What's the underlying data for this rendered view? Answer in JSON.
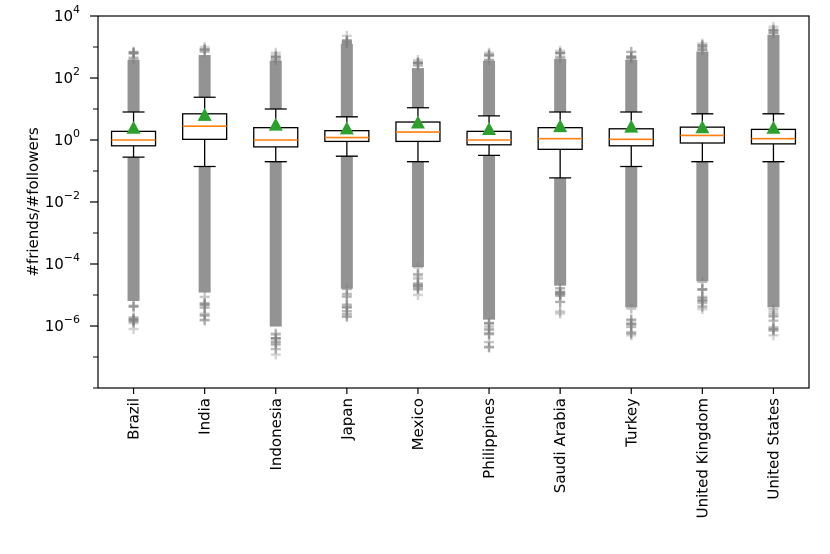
{
  "chart_data": {
    "type": "box",
    "ylabel": "#friends/#followers",
    "xlabel": "",
    "yscale": "log",
    "ylim": [
      1e-08,
      10000.0
    ],
    "yticks": [
      {
        "value": 1e-06,
        "base": "10",
        "exp": "−6"
      },
      {
        "value": 0.0001,
        "base": "10",
        "exp": "−4"
      },
      {
        "value": 0.01,
        "base": "10",
        "exp": "−2"
      },
      {
        "value": 1,
        "base": "10",
        "exp": "0"
      },
      {
        "value": 100,
        "base": "10",
        "exp": "2"
      },
      {
        "value": 10000.0,
        "base": "10",
        "exp": "4"
      }
    ],
    "grid": false,
    "colors": {
      "box": "#000000",
      "median": "#ff7f0e",
      "mean": "#2ca02c",
      "outlier": "#808080"
    },
    "mean_marker": "triangle-up",
    "outlier_marker": "plus",
    "categories": [
      "Brazil",
      "India",
      "Indonesia",
      "Japan",
      "Mexico",
      "Philippines",
      "Saudi Arabia",
      "Turkey",
      "United Kingdom",
      "United States"
    ],
    "series": [
      {
        "values": [
          {
            "whislo": 0.28,
            "q1": 0.65,
            "med": 1.0,
            "q3": 1.9,
            "whishi": 8.0,
            "mean": 2.3,
            "flier_min": 8e-07,
            "flier_max": 700
          },
          {
            "whislo": 0.14,
            "q1": 1.05,
            "med": 2.8,
            "q3": 7.0,
            "whishi": 24,
            "mean": 6.0,
            "flier_min": 1.5e-06,
            "flier_max": 1000
          },
          {
            "whislo": 0.2,
            "q1": 0.6,
            "med": 1.0,
            "q3": 2.5,
            "whishi": 10,
            "mean": 2.9,
            "flier_min": 1.2e-07,
            "flier_max": 650
          },
          {
            "whislo": 0.3,
            "q1": 0.9,
            "med": 1.2,
            "q3": 2.0,
            "whishi": 5.6,
            "mean": 2.2,
            "flier_min": 2e-06,
            "flier_max": 2300
          },
          {
            "whislo": 0.2,
            "q1": 0.9,
            "med": 1.8,
            "q3": 3.8,
            "whishi": 11,
            "mean": 3.4,
            "flier_min": 1e-05,
            "flier_max": 380
          },
          {
            "whislo": 0.32,
            "q1": 0.7,
            "med": 1.0,
            "q3": 1.9,
            "whishi": 6.0,
            "mean": 2.1,
            "flier_min": 2e-07,
            "flier_max": 650
          },
          {
            "whislo": 0.06,
            "q1": 0.5,
            "med": 1.1,
            "q3": 2.5,
            "whishi": 8.0,
            "mean": 2.6,
            "flier_min": 2.5e-06,
            "flier_max": 750
          },
          {
            "whislo": 0.14,
            "q1": 0.65,
            "med": 1.05,
            "q3": 2.3,
            "whishi": 8.0,
            "mean": 2.5,
            "flier_min": 5e-07,
            "flier_max": 700
          },
          {
            "whislo": 0.2,
            "q1": 0.8,
            "med": 1.4,
            "q3": 2.6,
            "whishi": 7.0,
            "mean": 2.4,
            "flier_min": 3.5e-06,
            "flier_max": 1300
          },
          {
            "whislo": 0.2,
            "q1": 0.75,
            "med": 1.1,
            "q3": 2.2,
            "whishi": 7.0,
            "mean": 2.3,
            "flier_min": 5e-07,
            "flier_max": 4500
          }
        ]
      }
    ]
  }
}
